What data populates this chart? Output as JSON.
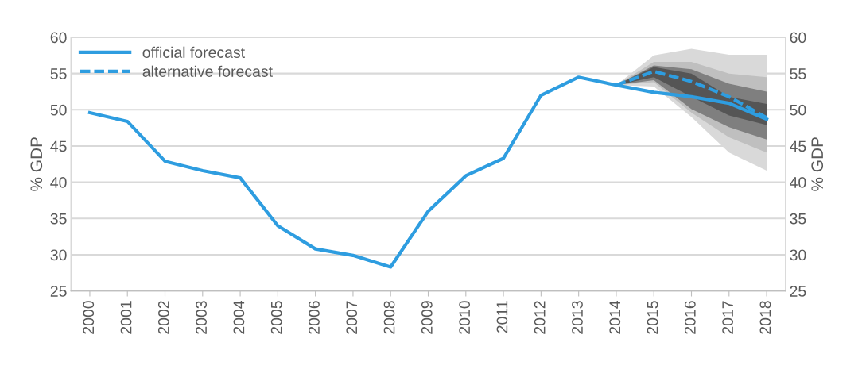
{
  "chart_data": {
    "type": "line",
    "categories": [
      "2000",
      "2001",
      "2002",
      "2003",
      "2004",
      "2005",
      "2006",
      "2007",
      "2008",
      "2009",
      "2010",
      "2011",
      "2012",
      "2013",
      "2014",
      "2015",
      "2016",
      "2017",
      "2018"
    ],
    "series": [
      {
        "type": "area",
        "color": "#d9d9d9",
        "values": [
          null,
          null,
          null,
          null,
          null,
          null,
          null,
          null,
          null,
          null,
          null,
          null,
          null,
          null,
          null,
          null,
          null,
          null,
          null
        ],
        "upper": [
          null,
          null,
          null,
          null,
          null,
          null,
          null,
          null,
          null,
          null,
          null,
          null,
          null,
          null,
          53.4,
          57.5,
          58.4,
          57.6,
          57.6
        ],
        "lower": [
          null,
          null,
          null,
          null,
          null,
          null,
          null,
          null,
          null,
          null,
          null,
          null,
          null,
          null,
          53.4,
          53.2,
          49.0,
          44.1,
          41.6
        ]
      },
      {
        "type": "area",
        "color": "#bfbfbf",
        "values": [
          null,
          null,
          null,
          null,
          null,
          null,
          null,
          null,
          null,
          null,
          null,
          null,
          null,
          null,
          null,
          null,
          null,
          null,
          null
        ],
        "upper": [
          null,
          null,
          null,
          null,
          null,
          null,
          null,
          null,
          null,
          null,
          null,
          null,
          null,
          null,
          53.4,
          56.6,
          56.6,
          55.0,
          54.5
        ],
        "lower": [
          null,
          null,
          null,
          null,
          null,
          null,
          null,
          null,
          null,
          null,
          null,
          null,
          null,
          null,
          53.4,
          53.8,
          49.6,
          46.2,
          44.1
        ]
      },
      {
        "type": "area",
        "color": "#7f7f7f",
        "values": [
          null,
          null,
          null,
          null,
          null,
          null,
          null,
          null,
          null,
          null,
          null,
          null,
          null,
          null,
          null,
          null,
          null,
          null,
          null
        ],
        "upper": [
          null,
          null,
          null,
          null,
          null,
          null,
          null,
          null,
          null,
          null,
          null,
          null,
          null,
          null,
          53.4,
          56.1,
          55.6,
          53.6,
          52.5
        ],
        "lower": [
          null,
          null,
          null,
          null,
          null,
          null,
          null,
          null,
          null,
          null,
          null,
          null,
          null,
          null,
          53.4,
          54.1,
          50.1,
          47.6,
          45.9
        ]
      },
      {
        "type": "area",
        "color": "#555555",
        "values": [
          null,
          null,
          null,
          null,
          null,
          null,
          null,
          null,
          null,
          null,
          null,
          null,
          null,
          null,
          null,
          null,
          null,
          null,
          null
        ],
        "upper": [
          null,
          null,
          null,
          null,
          null,
          null,
          null,
          null,
          null,
          null,
          null,
          null,
          null,
          null,
          53.4,
          55.9,
          55.0,
          51.8,
          50.8
        ],
        "lower": [
          null,
          null,
          null,
          null,
          null,
          null,
          null,
          null,
          null,
          null,
          null,
          null,
          null,
          null,
          53.4,
          54.5,
          51.8,
          49.2,
          47.9
        ]
      },
      {
        "name": "official forecast",
        "color": "#2e9de0",
        "line_style": "solid",
        "values": [
          49.6,
          48.4,
          42.9,
          41.6,
          40.6,
          34.0,
          30.8,
          29.9,
          28.3,
          36.0,
          40.9,
          43.3,
          52.0,
          54.5,
          53.4,
          52.4,
          51.8,
          50.9,
          48.7
        ]
      },
      {
        "name": "alternative forecast",
        "color": "#2e9de0",
        "line_style": "dashed",
        "values": [
          null,
          null,
          null,
          null,
          null,
          null,
          null,
          null,
          null,
          null,
          null,
          null,
          null,
          null,
          53.4,
          55.3,
          53.9,
          51.8,
          48.9
        ]
      }
    ],
    "ylabel": "% GDP",
    "y2label": "% GDP",
    "ylim": [
      25,
      60
    ],
    "yticks": [
      25,
      30,
      35,
      40,
      45,
      50,
      55,
      60
    ],
    "y2lim": [
      25,
      60
    ],
    "y2ticks": [
      25,
      30,
      35,
      40,
      45,
      50,
      55,
      60
    ],
    "grid": "y",
    "legend": "top left",
    "marker": "none"
  }
}
